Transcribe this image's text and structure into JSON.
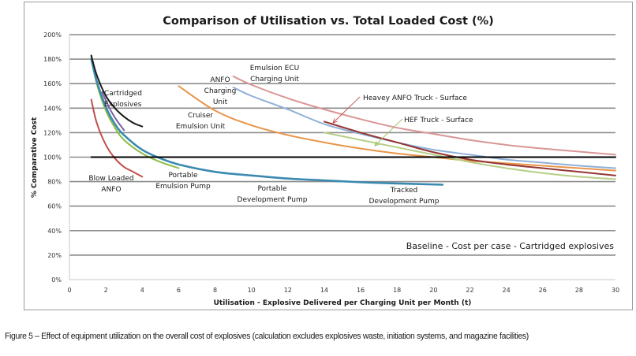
{
  "chart_data": {
    "type": "line",
    "title": "Comparison of Utilisation vs. Total Loaded Cost (%)",
    "xlabel": "Utilisation - Explosive Delivered per Charging Unit per Month (t)",
    "ylabel": "% Comparative Cost",
    "xlim": [
      0,
      30
    ],
    "ylim": [
      0,
      200
    ],
    "x_ticks": [
      "0",
      "2",
      "4",
      "6",
      "8",
      "10",
      "12",
      "14",
      "16",
      "18",
      "20",
      "22",
      "24",
      "26",
      "28",
      "30"
    ],
    "y_ticks": [
      "0%",
      "20%",
      "40%",
      "60%",
      "80%",
      "100%",
      "120%",
      "140%",
      "160%",
      "180%",
      "200%"
    ],
    "grid": "horizontal",
    "baseline_note": "Baseline - Cost per case - Cartridged explosives",
    "series": [
      {
        "name": "Baseline",
        "color": "#000000",
        "x": [
          1.2,
          30
        ],
        "y": [
          100,
          100
        ]
      },
      {
        "name": "Cartridged Explosives",
        "color": "#1a1a1a",
        "x": [
          1.2,
          1.5,
          2,
          2.5,
          3,
          3.5,
          4
        ],
        "y": [
          183,
          167,
          150,
          140,
          133,
          128,
          125
        ]
      },
      {
        "name": "Blow Loaded ANFO",
        "color": "#c0504d",
        "x": [
          1.2,
          1.5,
          2,
          2.5,
          3,
          3.5,
          4
        ],
        "y": [
          147,
          128,
          110,
          99,
          92,
          88,
          84
        ]
      },
      {
        "name": "Portable Emulsion Pump",
        "color": "#8fbc45",
        "x": [
          1.2,
          1.5,
          2,
          2.5,
          3,
          4,
          5,
          6
        ],
        "y": [
          182,
          160,
          138,
          124,
          114,
          103,
          96,
          91
        ]
      },
      {
        "name": "Portable Emulsion Pump (purple)",
        "color": "#7d60a0",
        "x": [
          1.8,
          2.2,
          2.6,
          3
        ],
        "y": [
          153,
          140,
          130,
          122
        ]
      },
      {
        "name": "Portable / Tracked Development Pump",
        "color": "#3a8ab0",
        "x": [
          1.2,
          1.5,
          2,
          2.5,
          3,
          4,
          5,
          6,
          8,
          10,
          12,
          14,
          16,
          18,
          20.5
        ],
        "y": [
          180,
          162,
          141,
          127,
          118,
          106,
          99,
          94,
          88,
          85,
          82.5,
          81,
          79.5,
          78.5,
          77.5
        ]
      },
      {
        "name": "Cruiser Emulsion Unit",
        "color": "#e8954a",
        "x": [
          6,
          8,
          10,
          12,
          14,
          16,
          18,
          20,
          22,
          24,
          26,
          28,
          30
        ],
        "y": [
          158,
          138,
          126,
          118,
          112,
          107,
          103,
          100,
          97,
          95,
          93,
          91,
          89
        ]
      },
      {
        "name": "ANFO Charging Unit",
        "color": "#8fb0d8",
        "x": [
          9,
          10,
          12,
          14,
          16,
          18,
          20,
          22,
          24,
          26,
          28,
          30
        ],
        "y": [
          157,
          150,
          139,
          127,
          119,
          112,
          106,
          102,
          98,
          95.5,
          93,
          91
        ]
      },
      {
        "name": "Emulsion ECU Charging Unit",
        "color": "#d99694",
        "x": [
          9,
          10,
          12,
          14,
          16,
          18,
          20,
          22,
          24,
          26,
          28,
          30
        ],
        "y": [
          166,
          159,
          148,
          139,
          131,
          124,
          119,
          114,
          110,
          107,
          104.5,
          102
        ]
      },
      {
        "name": "Heavey ANFO Truck - Surface",
        "color": "#943634",
        "x": [
          14,
          16,
          18,
          20,
          22,
          24,
          26,
          28,
          30
        ],
        "y": [
          129,
          120,
          112,
          104,
          98,
          94,
          91,
          88,
          85
        ]
      },
      {
        "name": "HEF Truck - Surface",
        "color": "#b5cf87",
        "x": [
          14,
          16,
          18,
          20,
          22,
          24,
          26,
          28,
          30
        ],
        "y": [
          120,
          114,
          108,
          102,
          96,
          91,
          87,
          84,
          82
        ]
      }
    ],
    "annotations": [
      {
        "id": "cartridged",
        "lines": [
          "Cartridged",
          "Explosives"
        ]
      },
      {
        "id": "blow-loaded",
        "lines": [
          "Blow Loaded",
          "ANFO"
        ]
      },
      {
        "id": "portable-emulsion",
        "lines": [
          "Portable",
          "Emulsion Pump"
        ]
      },
      {
        "id": "portable-dev",
        "lines": [
          "Portable",
          "Development Pump"
        ]
      },
      {
        "id": "tracked-dev",
        "lines": [
          "Tracked",
          "Development Pump"
        ]
      },
      {
        "id": "cruiser",
        "lines": [
          "Cruiser",
          "Emulsion Unit"
        ]
      },
      {
        "id": "anfo-charging",
        "lines": [
          "ANFO",
          "Charging",
          "Unit"
        ]
      },
      {
        "id": "emulsion-ecu",
        "lines": [
          "Emulsion  ECU",
          "Charging Unit"
        ]
      },
      {
        "id": "heavy-anfo",
        "lines": [
          "Heavey ANFO Truck - Surface"
        ]
      },
      {
        "id": "hef-truck",
        "lines": [
          "HEF Truck - Surface"
        ]
      }
    ]
  },
  "caption": "Figure 5 – Effect of equipment utilization on the overall cost of explosives (calculation excludes explosives waste, initiation systems, and magazine facilities)"
}
